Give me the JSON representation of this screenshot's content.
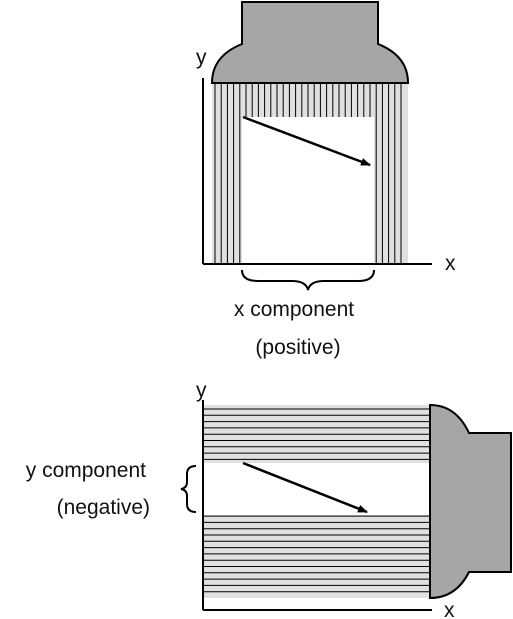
{
  "top_figure": {
    "y_axis_label": "y",
    "x_axis_label": "x",
    "component_label_line1": "x component",
    "component_label_line2": "(positive)"
  },
  "bottom_figure": {
    "y_axis_label": "y",
    "x_axis_label": "x",
    "component_label_line1": "y component",
    "component_label_line2": "(negative)"
  },
  "colors": {
    "projector_fill": "#a6a6a6",
    "shadow_fill": "#e0e0e0",
    "line": "#000000"
  }
}
